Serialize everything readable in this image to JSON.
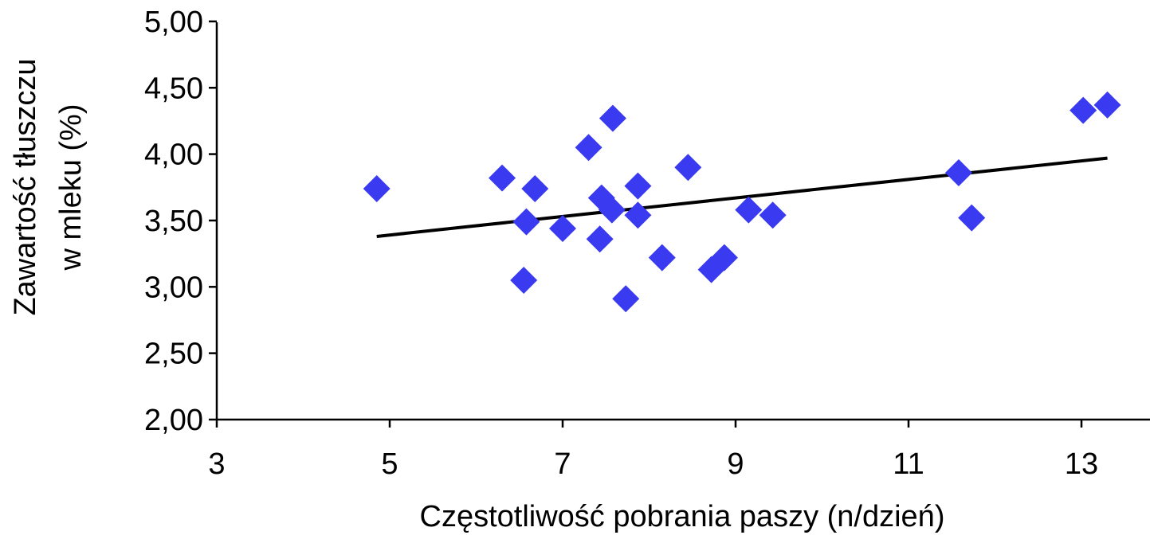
{
  "chart_data": {
    "type": "scatter",
    "title": "",
    "xlabel": "Częstotliwość pobrania paszy (n/dzień)",
    "ylabel_lines": [
      "Zawartość tłuszczu",
      "w mleku (%)"
    ],
    "xlim": [
      3,
      14
    ],
    "ylim": [
      2.0,
      5.0
    ],
    "x_ticks": [
      3,
      5,
      7,
      9,
      11,
      13
    ],
    "x_tick_labels": [
      "3",
      "5",
      "7",
      "9",
      "11",
      "13"
    ],
    "y_ticks": [
      2.0,
      2.5,
      3.0,
      3.5,
      4.0,
      4.5,
      5.0
    ],
    "y_tick_labels": [
      "2,00",
      "2,50",
      "3,00",
      "3,50",
      "4,00",
      "4,50",
      "5,00"
    ],
    "grid": false,
    "marker": "diamond",
    "series": [
      {
        "color": "#3a3af0",
        "points": [
          {
            "x": 4.85,
            "y": 3.74
          },
          {
            "x": 6.3,
            "y": 3.82
          },
          {
            "x": 6.55,
            "y": 3.05
          },
          {
            "x": 6.58,
            "y": 3.49
          },
          {
            "x": 6.68,
            "y": 3.74
          },
          {
            "x": 7.0,
            "y": 3.44
          },
          {
            "x": 7.3,
            "y": 4.05
          },
          {
            "x": 7.43,
            "y": 3.36
          },
          {
            "x": 7.45,
            "y": 3.67
          },
          {
            "x": 7.57,
            "y": 3.58
          },
          {
            "x": 7.58,
            "y": 4.27
          },
          {
            "x": 7.73,
            "y": 2.91
          },
          {
            "x": 7.87,
            "y": 3.54
          },
          {
            "x": 7.87,
            "y": 3.76
          },
          {
            "x": 8.15,
            "y": 3.22
          },
          {
            "x": 8.45,
            "y": 3.9
          },
          {
            "x": 8.72,
            "y": 3.13
          },
          {
            "x": 8.87,
            "y": 3.22
          },
          {
            "x": 9.15,
            "y": 3.58
          },
          {
            "x": 9.43,
            "y": 3.54
          },
          {
            "x": 11.58,
            "y": 3.86
          },
          {
            "x": 11.73,
            "y": 3.52
          },
          {
            "x": 13.02,
            "y": 4.33
          },
          {
            "x": 13.3,
            "y": 4.37
          }
        ]
      }
    ],
    "trendline": {
      "type": "linear",
      "color": "#000000",
      "points": [
        {
          "x": 4.85,
          "y": 3.38
        },
        {
          "x": 13.3,
          "y": 3.97
        }
      ]
    }
  }
}
